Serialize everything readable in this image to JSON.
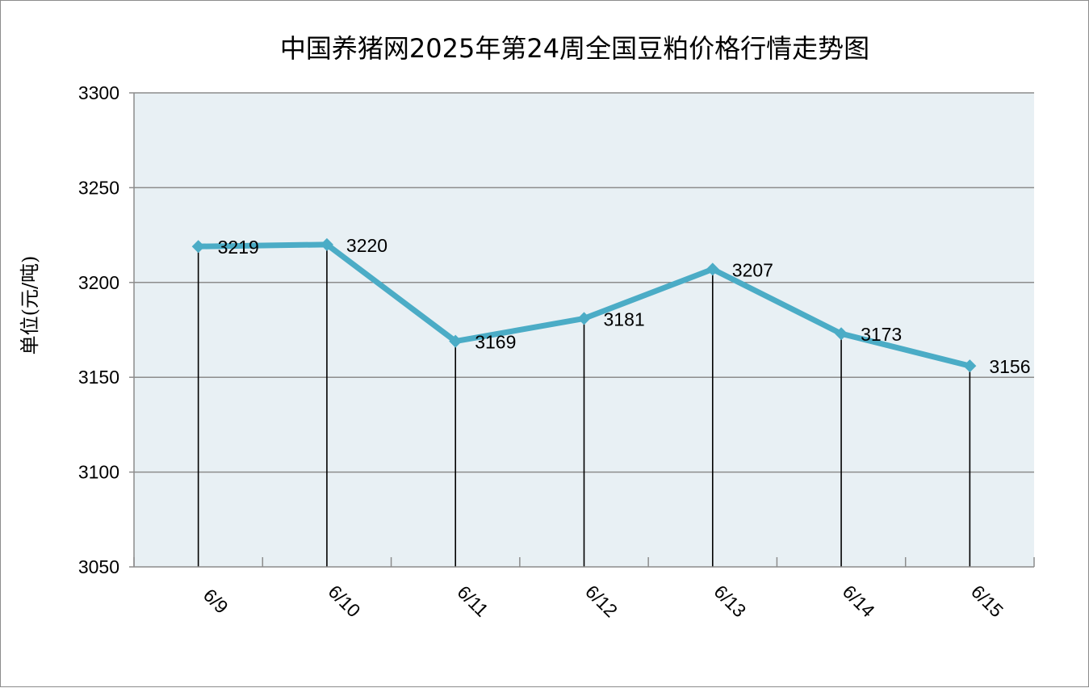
{
  "chart_data": {
    "type": "line",
    "title": "中国养猪网2025年第24周全国豆粕价格行情走势图",
    "ylabel": "单位(元/吨)",
    "xlabel": "",
    "categories": [
      "6/9",
      "6/10",
      "6/11",
      "6/12",
      "6/13",
      "6/14",
      "6/15"
    ],
    "values": [
      3219,
      3220,
      3169,
      3181,
      3207,
      3173,
      3156
    ],
    "data_labels": [
      "3219",
      "3220",
      "3169",
      "3181",
      "3207",
      "3173",
      "3156"
    ],
    "ylim": [
      3050,
      3300
    ],
    "yticks": [
      3050,
      3100,
      3150,
      3200,
      3250,
      3300
    ],
    "ytick_labels": [
      "3050",
      "3100",
      "3150",
      "3200",
      "3250",
      "3300"
    ],
    "grid": true,
    "legend": "none",
    "drop_lines": true,
    "colors": {
      "line": "#4bacc6",
      "plot_background": "#e8f0f4",
      "gridline": "#8c8c8c",
      "drop_line": "#000000"
    }
  }
}
